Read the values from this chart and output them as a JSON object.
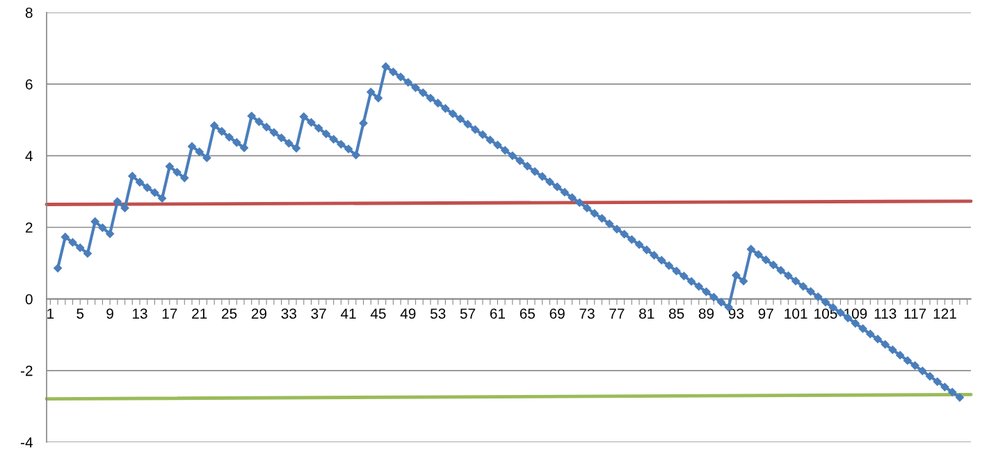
{
  "chart_data": {
    "type": "line",
    "xlim": [
      0.5,
      124.5
    ],
    "ylim": [
      -4,
      8
    ],
    "yticks": [
      -4,
      -2,
      0,
      2,
      4,
      6,
      8
    ],
    "grid": "y",
    "xticks": [
      1,
      {
        "value": 2,
        "label": null
      },
      {
        "value": 3,
        "label": null
      },
      {
        "value": 4,
        "label": null
      },
      5,
      {
        "value": 6,
        "label": null
      },
      {
        "value": 7,
        "label": null
      },
      {
        "value": 8,
        "label": null
      },
      9,
      {
        "value": 10,
        "label": null
      },
      {
        "value": 11,
        "label": null
      },
      {
        "value": 12,
        "label": null
      },
      13,
      {
        "value": 14,
        "label": null
      },
      {
        "value": 15,
        "label": null
      },
      {
        "value": 16,
        "label": null
      },
      17,
      {
        "value": 18,
        "label": null
      },
      {
        "value": 19,
        "label": null
      },
      {
        "value": 20,
        "label": null
      },
      21,
      {
        "value": 22,
        "label": null
      },
      {
        "value": 23,
        "label": null
      },
      {
        "value": 24,
        "label": null
      },
      25,
      {
        "value": 26,
        "label": null
      },
      {
        "value": 27,
        "label": null
      },
      {
        "value": 28,
        "label": null
      },
      29,
      {
        "value": 30,
        "label": null
      },
      {
        "value": 31,
        "label": null
      },
      {
        "value": 32,
        "label": null
      },
      33,
      {
        "value": 34,
        "label": null
      },
      {
        "value": 35,
        "label": null
      },
      {
        "value": 36,
        "label": null
      },
      37,
      {
        "value": 38,
        "label": null
      },
      {
        "value": 39,
        "label": null
      },
      {
        "value": 40,
        "label": null
      },
      41,
      {
        "value": 42,
        "label": null
      },
      {
        "value": 43,
        "label": null
      },
      {
        "value": 44,
        "label": null
      },
      45,
      {
        "value": 46,
        "label": null
      },
      {
        "value": 47,
        "label": null
      },
      {
        "value": 48,
        "label": null
      },
      49,
      {
        "value": 50,
        "label": null
      },
      {
        "value": 51,
        "label": null
      },
      {
        "value": 52,
        "label": null
      },
      53,
      {
        "value": 54,
        "label": null
      },
      {
        "value": 55,
        "label": null
      },
      {
        "value": 56,
        "label": null
      },
      57,
      {
        "value": 58,
        "label": null
      },
      {
        "value": 59,
        "label": null
      },
      {
        "value": 60,
        "label": null
      },
      61,
      {
        "value": 62,
        "label": null
      },
      {
        "value": 63,
        "label": null
      },
      {
        "value": 64,
        "label": null
      },
      65,
      {
        "value": 66,
        "label": null
      },
      {
        "value": 67,
        "label": null
      },
      {
        "value": 68,
        "label": null
      },
      69,
      {
        "value": 70,
        "label": null
      },
      {
        "value": 71,
        "label": null
      },
      {
        "value": 72,
        "label": null
      },
      73,
      {
        "value": 74,
        "label": null
      },
      {
        "value": 75,
        "label": null
      },
      {
        "value": 76,
        "label": null
      },
      77,
      {
        "value": 78,
        "label": null
      },
      {
        "value": 79,
        "label": null
      },
      {
        "value": 80,
        "label": null
      },
      81,
      {
        "value": 82,
        "label": null
      },
      {
        "value": 83,
        "label": null
      },
      {
        "value": 84,
        "label": null
      },
      85,
      {
        "value": 86,
        "label": null
      },
      {
        "value": 87,
        "label": null
      },
      {
        "value": 88,
        "label": null
      },
      89,
      {
        "value": 90,
        "label": null
      },
      {
        "value": 91,
        "label": null
      },
      {
        "value": 92,
        "label": null
      },
      93,
      {
        "value": 94,
        "label": null
      },
      {
        "value": 95,
        "label": null
      },
      {
        "value": 96,
        "label": null
      },
      97,
      {
        "value": 98,
        "label": null
      },
      {
        "value": 99,
        "label": null
      },
      {
        "value": 100,
        "label": null
      },
      101,
      {
        "value": 102,
        "label": null
      },
      {
        "value": 103,
        "label": null
      },
      {
        "value": 104,
        "label": null
      },
      105,
      {
        "value": 106,
        "label": null
      },
      {
        "value": 107,
        "label": null
      },
      {
        "value": 108,
        "label": null
      },
      109,
      {
        "value": 110,
        "label": null
      },
      {
        "value": 111,
        "label": null
      },
      {
        "value": 112,
        "label": null
      },
      113,
      {
        "value": 114,
        "label": null
      },
      {
        "value": 115,
        "label": null
      },
      {
        "value": 116,
        "label": null
      },
      117,
      {
        "value": 118,
        "label": null
      },
      {
        "value": 119,
        "label": null
      },
      {
        "value": 120,
        "label": null
      },
      121,
      {
        "value": 122,
        "label": null
      },
      {
        "value": 123,
        "label": null
      },
      {
        "value": 124,
        "label": null
      }
    ],
    "series": [
      {
        "color": "#4a7ebb",
        "marker": "diamond",
        "x": [
          2,
          3,
          4,
          5,
          6,
          7,
          8,
          9,
          10,
          11,
          12,
          13,
          14,
          15,
          16,
          17,
          18,
          19,
          20,
          21,
          22,
          23,
          24,
          25,
          26,
          27,
          28,
          29,
          30,
          31,
          32,
          33,
          34,
          35,
          36,
          37,
          38,
          39,
          40,
          41,
          42,
          43,
          44,
          45,
          46,
          47,
          48,
          49,
          50,
          51,
          52,
          53,
          54,
          55,
          56,
          57,
          58,
          59,
          60,
          61,
          62,
          63,
          64,
          65,
          66,
          67,
          68,
          69,
          70,
          71,
          72,
          73,
          74,
          75,
          76,
          77,
          78,
          79,
          80,
          81,
          82,
          83,
          84,
          85,
          86,
          87,
          88,
          89,
          90,
          91,
          92,
          93,
          94,
          95,
          96,
          97,
          98,
          99,
          100,
          101,
          102,
          103,
          104,
          105,
          106,
          107,
          108,
          109,
          110,
          111,
          112,
          113,
          114,
          115,
          116,
          117,
          118,
          119,
          120,
          121,
          122,
          123
        ],
        "values": [
          0.86,
          1.73,
          1.58,
          1.43,
          1.27,
          2.16,
          1.99,
          1.82,
          2.72,
          2.54,
          3.43,
          3.26,
          3.11,
          2.97,
          2.81,
          3.7,
          3.54,
          3.38,
          4.26,
          4.11,
          3.94,
          4.84,
          4.68,
          4.52,
          4.37,
          4.22,
          5.11,
          4.95,
          4.8,
          4.65,
          4.5,
          4.35,
          4.21,
          5.09,
          4.93,
          4.77,
          4.61,
          4.46,
          4.32,
          4.19,
          4.02,
          4.91,
          5.78,
          5.61,
          6.49,
          6.34,
          6.2,
          6.05,
          5.9,
          5.76,
          5.61,
          5.47,
          5.32,
          5.17,
          5.03,
          4.88,
          4.73,
          4.59,
          4.44,
          4.3,
          4.15,
          4.0,
          3.86,
          3.71,
          3.56,
          3.42,
          3.27,
          3.13,
          2.98,
          2.83,
          2.69,
          2.54,
          2.39,
          2.25,
          2.1,
          1.95,
          1.81,
          1.66,
          1.52,
          1.37,
          1.22,
          1.08,
          0.93,
          0.78,
          0.64,
          0.49,
          0.35,
          0.2,
          0.05,
          -0.09,
          -0.23,
          0.66,
          0.5,
          1.39,
          1.24,
          1.09,
          0.95,
          0.8,
          0.65,
          0.5,
          0.35,
          0.21,
          0.06,
          -0.09,
          -0.24,
          -0.38,
          -0.53,
          -0.68,
          -0.83,
          -0.98,
          -1.12,
          -1.27,
          -1.42,
          -1.57,
          -1.72,
          -1.86,
          -2.01,
          -2.16,
          -2.31,
          -2.46,
          -2.6,
          -2.75
        ]
      },
      {
        "color": "#c0504d",
        "marker": "none",
        "x": [
          0.5,
          124.5
        ],
        "values": [
          2.64,
          2.73
        ]
      },
      {
        "color": "#9bbb59",
        "marker": "none",
        "x": [
          0.5,
          124.5
        ],
        "values": [
          -2.79,
          -2.67
        ]
      }
    ]
  }
}
